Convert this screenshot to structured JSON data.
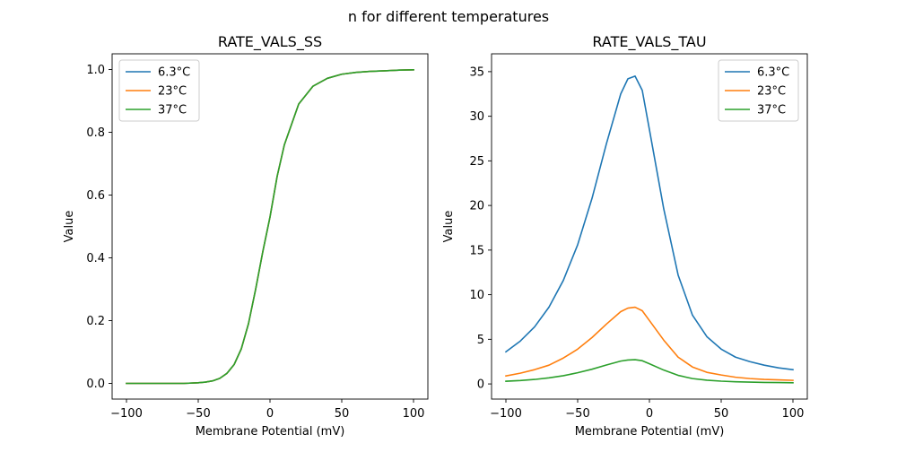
{
  "figure": {
    "suptitle": "n for different temperatures"
  },
  "colors": {
    "s0": "#1f77b4",
    "s1": "#ff7f0e",
    "s2": "#2ca02c"
  },
  "chart_data": [
    {
      "type": "line",
      "title": "RATE_VALS_SS",
      "xlabel": "Membrane Potential (mV)",
      "ylabel": "Value",
      "xlim": [
        -110,
        110
      ],
      "ylim": [
        -0.05,
        1.05
      ],
      "xticks": [
        -100,
        -50,
        0,
        50,
        100
      ],
      "xtick_labels": [
        "−100",
        "−50",
        "0",
        "50",
        "100"
      ],
      "yticks": [
        0.0,
        0.2,
        0.4,
        0.6,
        0.8,
        1.0
      ],
      "ytick_labels": [
        "0.0",
        "0.2",
        "0.4",
        "0.6",
        "0.8",
        "1.0"
      ],
      "legend_position": "top-left",
      "x": [
        -100,
        -90,
        -80,
        -70,
        -60,
        -50,
        -45,
        -40,
        -35,
        -30,
        -25,
        -20,
        -15,
        -10,
        -5,
        0,
        5,
        10,
        20,
        30,
        40,
        50,
        60,
        70,
        80,
        90,
        100
      ],
      "series": [
        {
          "name": "6.3°C",
          "values": [
            0.0,
            0.0,
            0.0,
            0.0,
            0.0,
            0.002,
            0.004,
            0.008,
            0.016,
            0.032,
            0.06,
            0.11,
            0.19,
            0.3,
            0.42,
            0.53,
            0.66,
            0.76,
            0.89,
            0.947,
            0.972,
            0.985,
            0.991,
            0.994,
            0.996,
            0.998,
            0.999
          ]
        },
        {
          "name": "23°C",
          "values": [
            0.0,
            0.0,
            0.0,
            0.0,
            0.0,
            0.002,
            0.004,
            0.008,
            0.016,
            0.032,
            0.06,
            0.11,
            0.19,
            0.3,
            0.42,
            0.53,
            0.66,
            0.76,
            0.89,
            0.947,
            0.972,
            0.985,
            0.991,
            0.994,
            0.996,
            0.998,
            0.999
          ]
        },
        {
          "name": "37°C",
          "values": [
            0.0,
            0.0,
            0.0,
            0.0,
            0.0,
            0.002,
            0.004,
            0.008,
            0.016,
            0.032,
            0.06,
            0.11,
            0.19,
            0.3,
            0.42,
            0.53,
            0.66,
            0.76,
            0.89,
            0.947,
            0.972,
            0.985,
            0.991,
            0.994,
            0.996,
            0.998,
            0.999
          ]
        }
      ]
    },
    {
      "type": "line",
      "title": "RATE_VALS_TAU",
      "xlabel": "Membrane Potential (mV)",
      "ylabel": "Value",
      "xlim": [
        -110,
        110
      ],
      "ylim": [
        -1.7,
        37.0
      ],
      "xticks": [
        -100,
        -50,
        0,
        50,
        100
      ],
      "xtick_labels": [
        "−100",
        "−50",
        "0",
        "50",
        "100"
      ],
      "yticks": [
        0,
        5,
        10,
        15,
        20,
        25,
        30,
        35
      ],
      "ytick_labels": [
        "0",
        "5",
        "10",
        "15",
        "20",
        "25",
        "30",
        "35"
      ],
      "legend_position": "top-right",
      "x": [
        -100,
        -90,
        -80,
        -70,
        -60,
        -50,
        -40,
        -30,
        -20,
        -15,
        -10,
        -5,
        0,
        10,
        20,
        30,
        40,
        50,
        60,
        70,
        80,
        90,
        100
      ],
      "series": [
        {
          "name": "6.3°C",
          "values": [
            3.6,
            4.8,
            6.4,
            8.6,
            11.6,
            15.6,
            20.8,
            26.9,
            32.5,
            34.2,
            34.5,
            32.9,
            28.5,
            19.6,
            12.2,
            7.7,
            5.3,
            3.9,
            3.0,
            2.5,
            2.1,
            1.8,
            1.6
          ]
        },
        {
          "name": "23°C",
          "values": [
            0.9,
            1.2,
            1.6,
            2.1,
            2.9,
            3.9,
            5.2,
            6.7,
            8.1,
            8.5,
            8.6,
            8.2,
            7.1,
            4.9,
            3.0,
            1.9,
            1.3,
            1.0,
            0.75,
            0.6,
            0.5,
            0.45,
            0.4
          ]
        },
        {
          "name": "37°C",
          "values": [
            0.3,
            0.38,
            0.5,
            0.68,
            0.92,
            1.25,
            1.65,
            2.12,
            2.56,
            2.68,
            2.72,
            2.6,
            2.26,
            1.55,
            0.96,
            0.6,
            0.42,
            0.31,
            0.24,
            0.2,
            0.17,
            0.15,
            0.13
          ]
        }
      ]
    }
  ]
}
